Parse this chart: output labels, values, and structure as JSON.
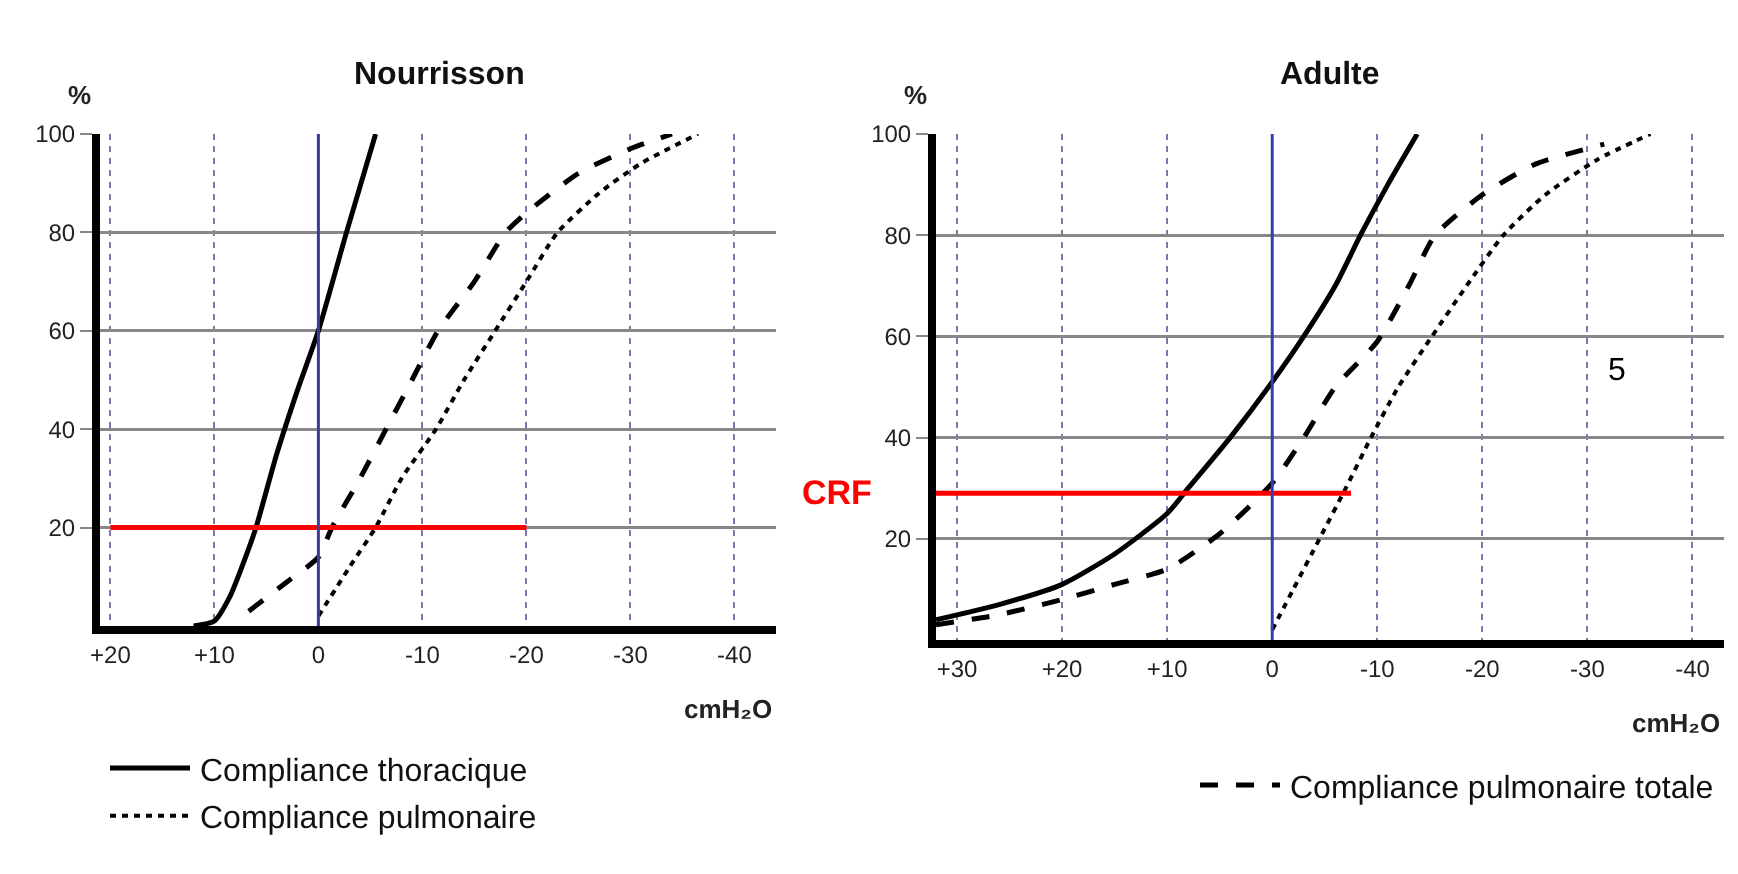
{
  "chart_data": [
    {
      "type": "line",
      "title": "Nourrisson",
      "xlabel": "cmH₂O",
      "ylabel": "%",
      "xlim": [
        21,
        -44
      ],
      "ylim": [
        0,
        100
      ],
      "xticks": [
        {
          "value": 20,
          "label": "+20"
        },
        {
          "value": 10,
          "label": "+10"
        },
        0,
        -10,
        -20,
        -30,
        -40
      ],
      "yticks": [
        20,
        40,
        60,
        80,
        100
      ],
      "grid": true,
      "legend": "bottom left",
      "ref_lines": [
        {
          "axis": "x",
          "value": 0,
          "color": "#3b3b9c"
        }
      ],
      "series": [
        {
          "name": "Compliance thoracique",
          "color": "#000000",
          "line_style": "solid",
          "x": [
            12,
            10,
            8.5,
            7,
            6,
            4,
            2,
            0,
            -2.7,
            -5.5
          ],
          "values": [
            0,
            1,
            6,
            14,
            20,
            35,
            48,
            60,
            80,
            100
          ]
        },
        {
          "name": "Compliance pulmonaire",
          "color": "#000000",
          "line_style": "dotted",
          "x": [
            0,
            -3,
            -5.5,
            -8,
            -11.3,
            -14,
            -17,
            -20,
            -23,
            -27,
            -31,
            -36.5
          ],
          "values": [
            2,
            12,
            20,
            30,
            40,
            50,
            60,
            70,
            80,
            88,
            94,
            100
          ]
        },
        {
          "color": "#000000",
          "line_style": "dashed",
          "x": [
            6.7,
            3,
            0,
            -1.3,
            -4,
            -6.5,
            -9,
            -11.5,
            -15,
            -18,
            -20,
            -25,
            -30,
            -34
          ],
          "values": [
            3,
            9,
            14,
            20,
            30,
            40,
            50,
            60,
            70,
            80,
            84,
            92,
            97,
            100
          ]
        },
        {
          "color": "#ff0000",
          "line_style": "solid",
          "x": [
            20,
            -20
          ],
          "values": [
            20,
            20
          ]
        }
      ]
    },
    {
      "type": "line",
      "title": "Adulte",
      "xlabel": "cmH₂O",
      "ylabel": "%",
      "xlim": [
        32,
        -43
      ],
      "ylim": [
        0,
        100
      ],
      "xticks": [
        {
          "value": 30,
          "label": "+30"
        },
        {
          "value": 20,
          "label": "+20"
        },
        {
          "value": 10,
          "label": "+10"
        },
        0,
        -10,
        -20,
        -30,
        -40
      ],
      "yticks": [
        20,
        40,
        60,
        80,
        100
      ],
      "grid": true,
      "legend": "bottom right",
      "annotations": [
        {
          "text": "CRF",
          "x": 32,
          "y": 29
        },
        "5"
      ],
      "ref_lines": [
        {
          "axis": "x",
          "value": 0,
          "color": "#3b3bb0"
        }
      ],
      "series": [
        {
          "color": "#000000",
          "line_style": "solid",
          "x": [
            32,
            26,
            20,
            15,
            10,
            8,
            4,
            0,
            -3,
            -6,
            -8.4,
            -11,
            -13.8
          ],
          "values": [
            4,
            7,
            11,
            17,
            25,
            30,
            40,
            51,
            60,
            70,
            80,
            90,
            100
          ]
        },
        {
          "color": "#000000",
          "line_style": "dotted",
          "x": [
            0,
            -2,
            -4.5,
            -7,
            -9.4,
            -12,
            -15.2,
            -18.5,
            -22,
            -26,
            -31,
            -36
          ],
          "values": [
            2,
            10,
            20,
            30,
            40,
            50,
            60,
            70,
            80,
            88,
            95,
            100
          ]
        },
        {
          "name": "Compliance pulmonaire totale",
          "color": "#000000",
          "line_style": "dashed",
          "x": [
            32,
            26,
            20,
            15,
            10,
            5,
            0,
            -3,
            -6,
            -10,
            -13,
            -15.5,
            -20,
            -25,
            -31.6
          ],
          "values": [
            3,
            5,
            8,
            11,
            14,
            21,
            31,
            40,
            50,
            59,
            70,
            80,
            88,
            94,
            98
          ]
        },
        {
          "color": "#ff0000",
          "line_style": "solid",
          "x": [
            32,
            -7.5
          ],
          "values": [
            29,
            29
          ]
        }
      ]
    }
  ]
}
